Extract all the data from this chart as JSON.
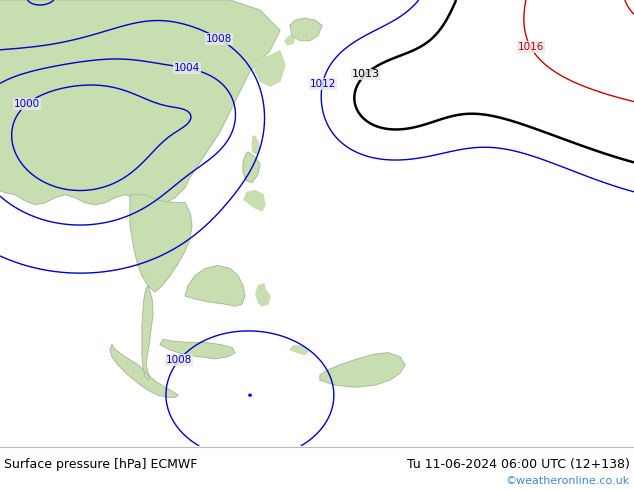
{
  "title_left": "Surface pressure [hPa] ECMWF",
  "title_right": "Tu 11-06-2024 06:00 UTC (12+138)",
  "watermark": "©weatheronline.co.uk",
  "ocean_color": "#e8e8e8",
  "land_color": "#c8ddb0",
  "land_border_color": "#999999",
  "figsize": [
    6.34,
    4.9
  ],
  "dpi": 100,
  "bottom_bar_color": "#ffffff",
  "title_color": "#000000",
  "watermark_color": "#4488cc",
  "contour_blue": "#0000cc",
  "contour_black": "#000000",
  "contour_red": "#cc0000",
  "label_fontsize": 7.5
}
